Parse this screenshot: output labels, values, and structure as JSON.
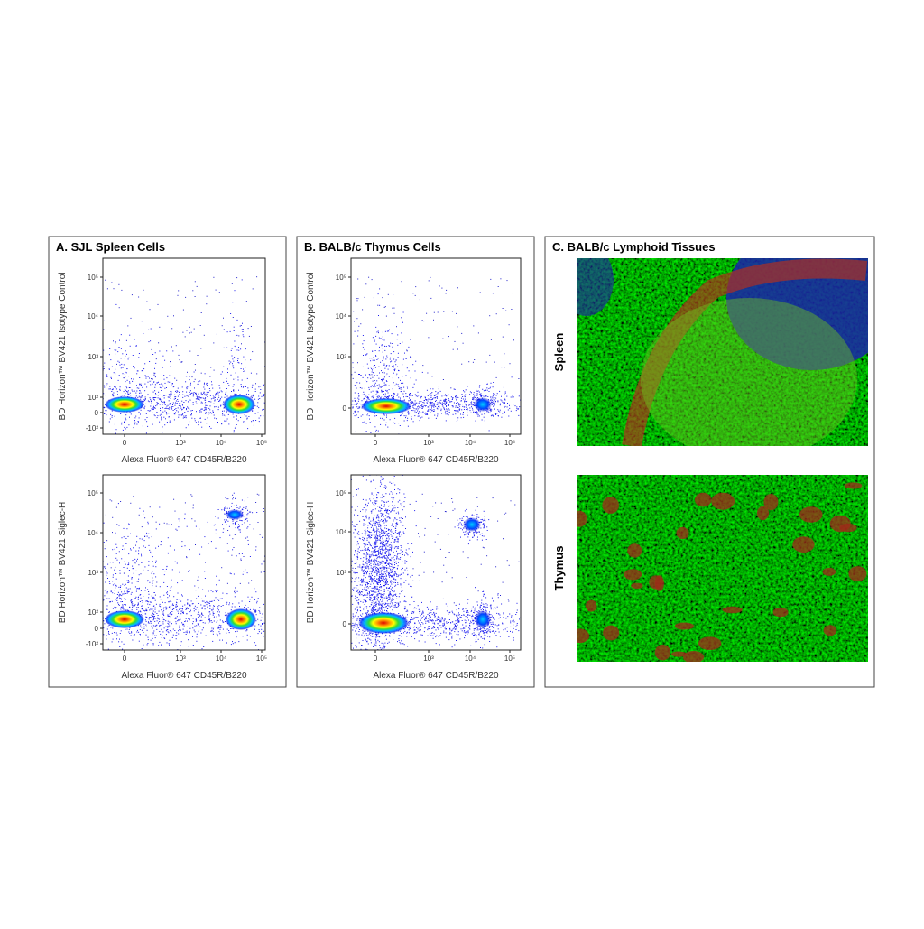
{
  "panels": [
    {
      "title": "A. SJL Spleen Cells",
      "plots": [
        {
          "ylabel": "BD Horizon™ BV421 Isotype Control",
          "xlabel": "Alexa Fluor® 647 CD45R/B220",
          "yticks": [
            "10⁵",
            "10⁴",
            "10³",
            "10²",
            "0",
            "-10²"
          ],
          "xticks": [
            "0",
            "10³",
            "10⁴",
            "10⁵"
          ]
        },
        {
          "ylabel": "BD Horizon™ BV421 Siglec-H",
          "xlabel": "Alexa Fluor® 647 CD45R/B220",
          "yticks": [
            "10⁵",
            "10⁴",
            "10³",
            "10²",
            "0",
            "-10²"
          ],
          "xticks": [
            "0",
            "10³",
            "10⁴",
            "10⁵"
          ]
        }
      ]
    },
    {
      "title": "B. BALB/c Thymus Cells",
      "plots": [
        {
          "ylabel": "BD Horizon™ BV421 Isotype Control",
          "xlabel": "Alexa Fluor® 647 CD45R/B220",
          "yticks": [
            "10⁵",
            "10⁴",
            "10³",
            "0"
          ],
          "xticks": [
            "0",
            "10³",
            "10⁴",
            "10⁵"
          ]
        },
        {
          "ylabel": "BD Horizon™ BV421 Siglec-H",
          "xlabel": "Alexa Fluor® 647 CD45R/B220",
          "yticks": [
            "10⁵",
            "10⁴",
            "10³",
            "0"
          ],
          "xticks": [
            "0",
            "10³",
            "10⁴",
            "10⁵"
          ]
        }
      ]
    },
    {
      "title": "C. BALB/c Lymphoid Tissues",
      "images": [
        {
          "label": "Spleen"
        },
        {
          "label": "Thymus"
        }
      ]
    }
  ]
}
